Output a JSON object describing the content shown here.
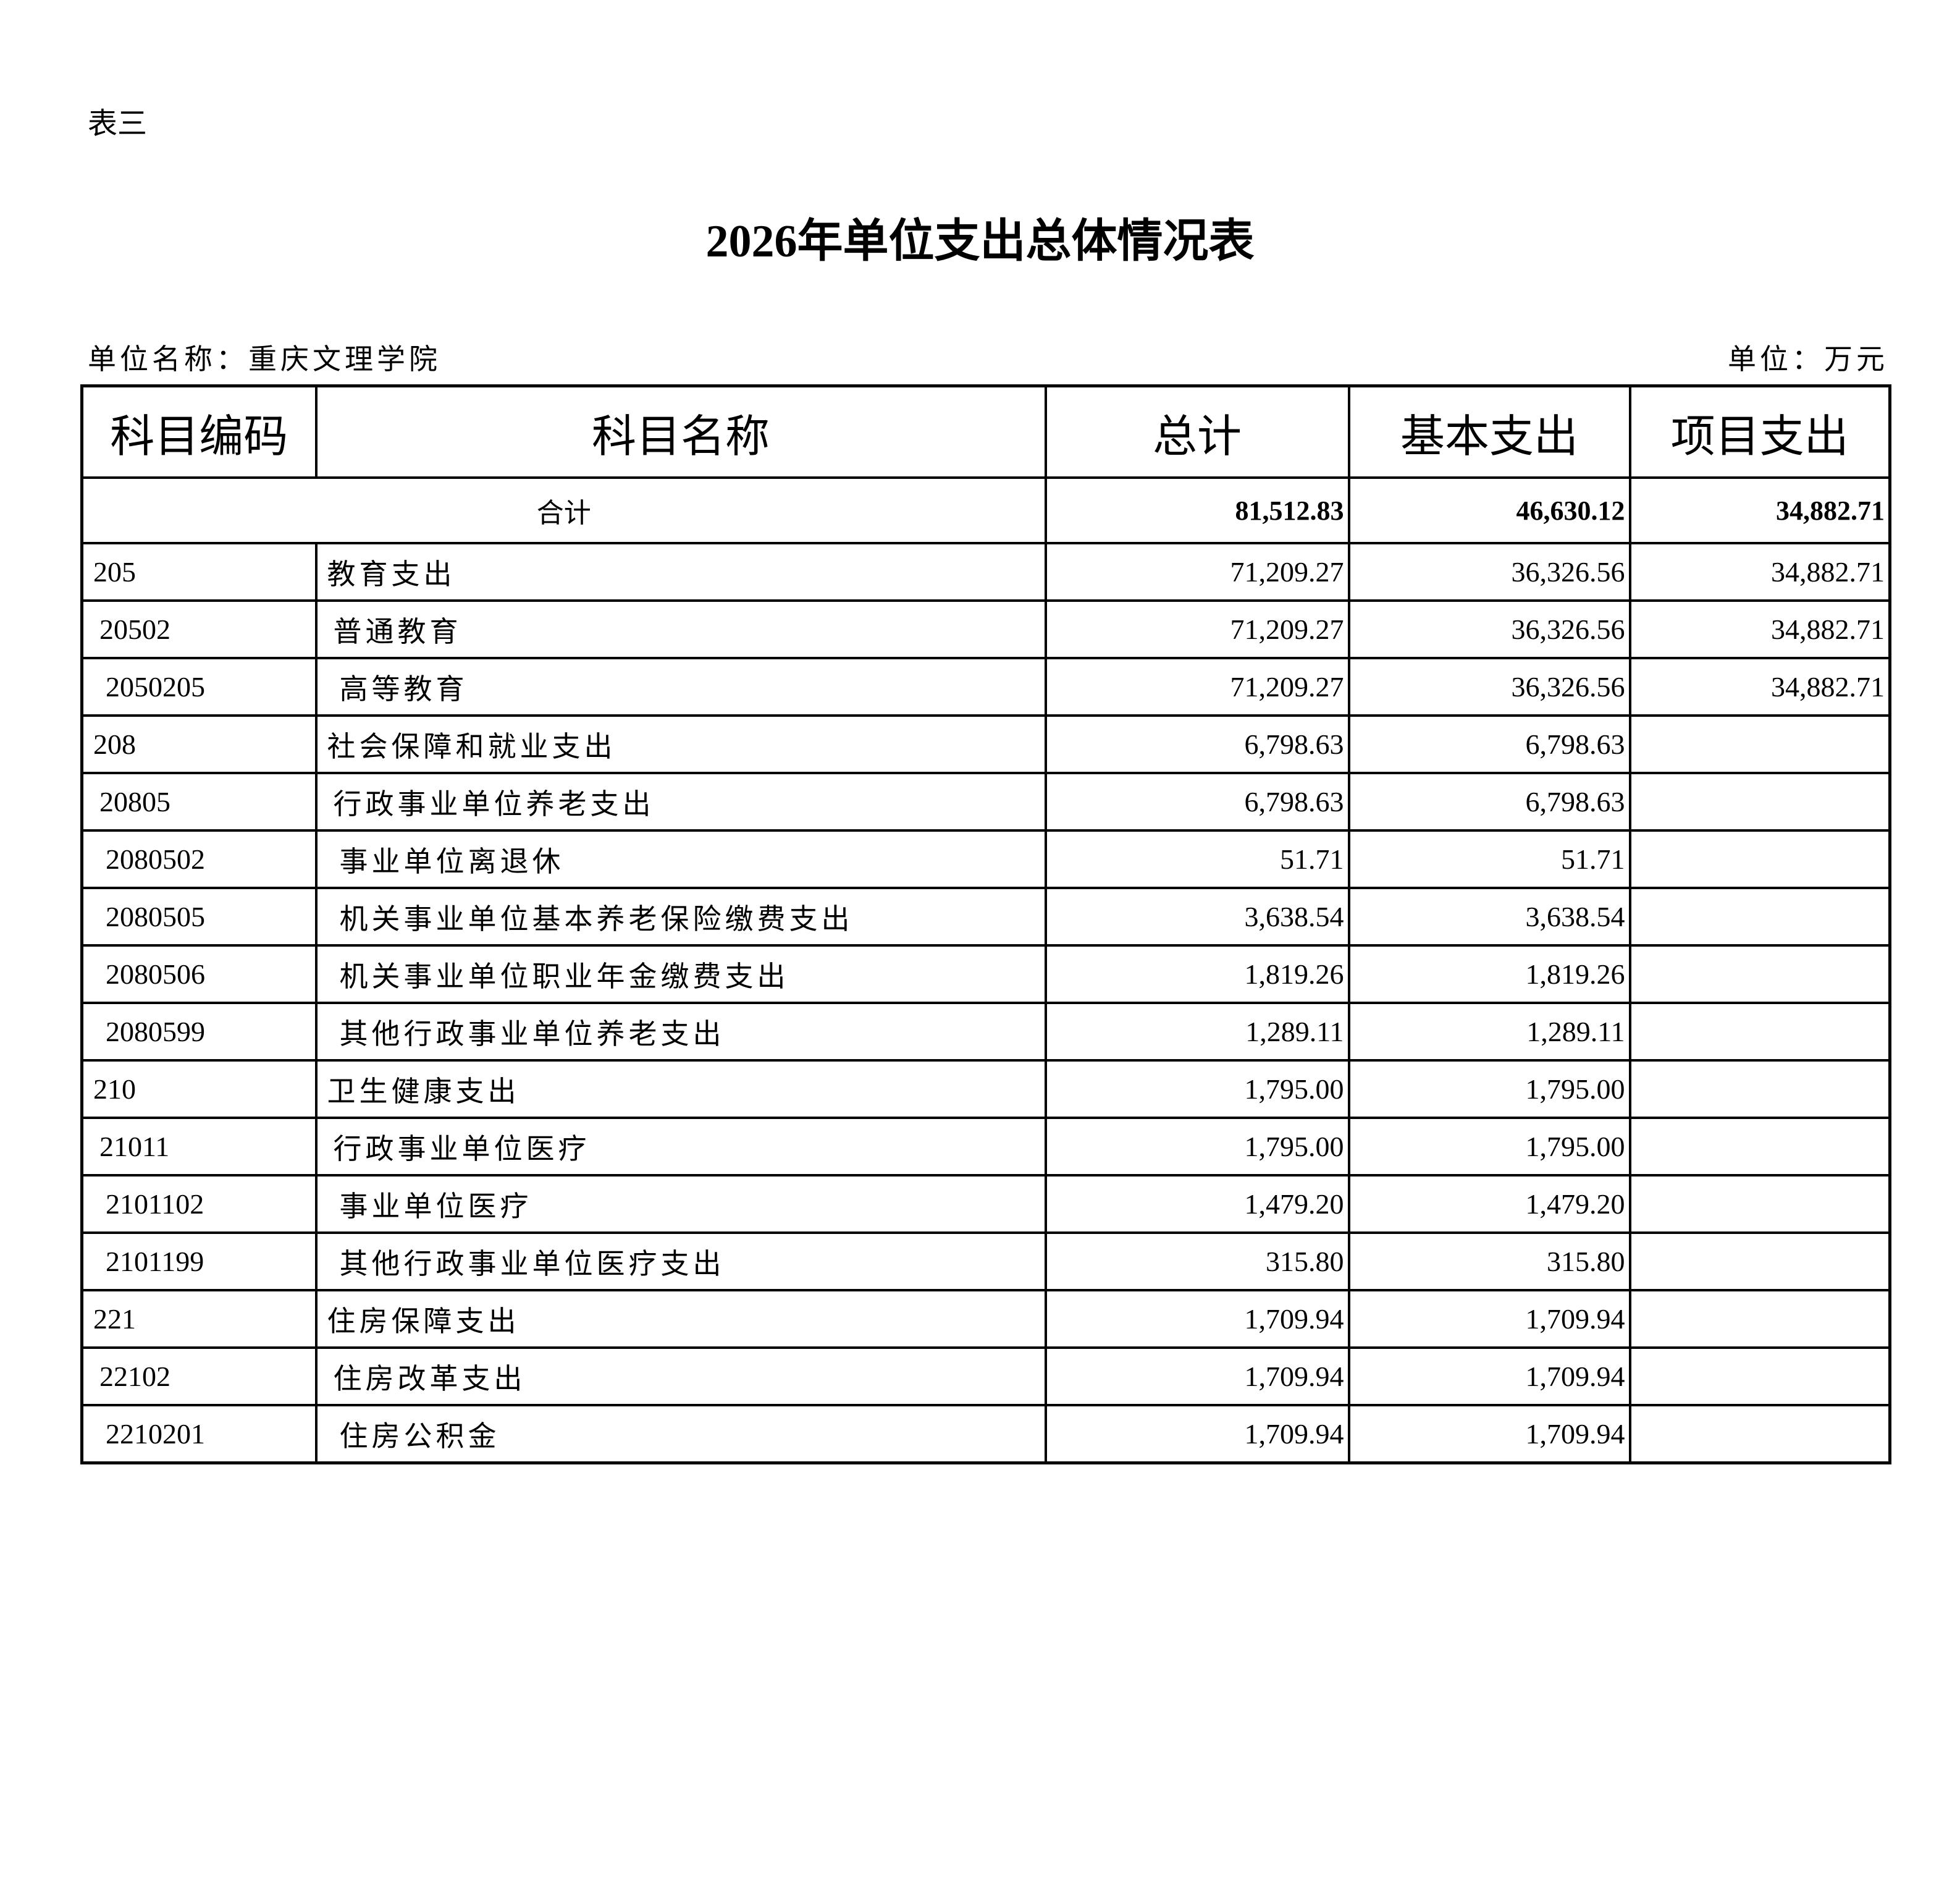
{
  "table_no": "表三",
  "title": "2026年单位支出总体情况表",
  "unit_name": "单位名称：重庆文理学院",
  "unit": "单位：万元",
  "headers": [
    "科目编码",
    "科目名称",
    "总计",
    "基本支出",
    "项目支出"
  ],
  "total": {
    "label": "合计",
    "total": "81,512.83",
    "basic": "46,630.12",
    "project": "34,882.71"
  },
  "rows": [
    {
      "code": "205",
      "name": "教育支出",
      "total": "71,209.27",
      "basic": "36,326.56",
      "project": "34,882.71",
      "level": 1
    },
    {
      "code": "20502",
      "name": "普通教育",
      "total": "71,209.27",
      "basic": "36,326.56",
      "project": "34,882.71",
      "level": 2
    },
    {
      "code": "2050205",
      "name": "高等教育",
      "total": "71,209.27",
      "basic": "36,326.56",
      "project": "34,882.71",
      "level": 3
    },
    {
      "code": "208",
      "name": "社会保障和就业支出",
      "total": "6,798.63",
      "basic": "6,798.63",
      "project": "",
      "level": 1
    },
    {
      "code": "20805",
      "name": "行政事业单位养老支出",
      "total": "6,798.63",
      "basic": "6,798.63",
      "project": "",
      "level": 2
    },
    {
      "code": "2080502",
      "name": "事业单位离退休",
      "total": "51.71",
      "basic": "51.71",
      "project": "",
      "level": 3
    },
    {
      "code": "2080505",
      "name": "机关事业单位基本养老保险缴费支出",
      "total": "3,638.54",
      "basic": "3,638.54",
      "project": "",
      "level": 3
    },
    {
      "code": "2080506",
      "name": "机关事业单位职业年金缴费支出",
      "total": "1,819.26",
      "basic": "1,819.26",
      "project": "",
      "level": 3
    },
    {
      "code": "2080599",
      "name": "其他行政事业单位养老支出",
      "total": "1,289.11",
      "basic": "1,289.11",
      "project": "",
      "level": 3
    },
    {
      "code": "210",
      "name": "卫生健康支出",
      "total": "1,795.00",
      "basic": "1,795.00",
      "project": "",
      "level": 1
    },
    {
      "code": "21011",
      "name": "行政事业单位医疗",
      "total": "1,795.00",
      "basic": "1,795.00",
      "project": "",
      "level": 2
    },
    {
      "code": "2101102",
      "name": "事业单位医疗",
      "total": "1,479.20",
      "basic": "1,479.20",
      "project": "",
      "level": 3
    },
    {
      "code": "2101199",
      "name": "其他行政事业单位医疗支出",
      "total": "315.80",
      "basic": "315.80",
      "project": "",
      "level": 3
    },
    {
      "code": "221",
      "name": "住房保障支出",
      "total": "1,709.94",
      "basic": "1,709.94",
      "project": "",
      "level": 1
    },
    {
      "code": "22102",
      "name": "住房改革支出",
      "total": "1,709.94",
      "basic": "1,709.94",
      "project": "",
      "level": 2
    },
    {
      "code": "2210201",
      "name": "住房公积金",
      "total": "1,709.94",
      "basic": "1,709.94",
      "project": "",
      "level": 3
    }
  ]
}
